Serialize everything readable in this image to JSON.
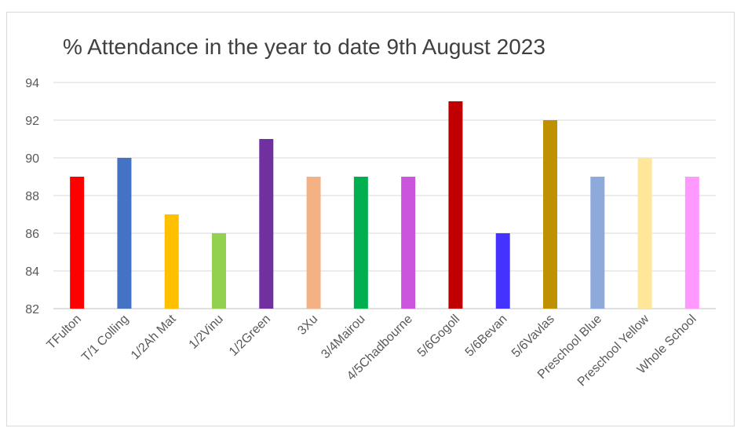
{
  "chart_data": {
    "type": "bar",
    "title": "% Attendance in the year to date 9th August 2023",
    "xlabel": "",
    "ylabel": "",
    "ylim": [
      82,
      94
    ],
    "yticks": [
      82,
      84,
      86,
      88,
      90,
      92,
      94
    ],
    "grid": true,
    "categories": [
      "TFulton",
      "T/1 Colling",
      "1/2Ah Mat",
      "1/2Vinu",
      "1/2Green",
      "3Xu",
      "3/4Mairou",
      "4/5Chadbourne",
      "5/6Gogoll",
      "5/6Bevan",
      "5/6Vavlas",
      "Preschool Blue",
      "Preschool Yellow",
      "Whole School"
    ],
    "values": [
      89,
      90,
      87,
      86,
      91,
      89,
      89,
      89,
      93,
      86,
      92,
      89,
      90,
      89
    ],
    "colors": [
      "#ff0000",
      "#4472c4",
      "#ffc000",
      "#92d050",
      "#7030a0",
      "#f4b183",
      "#00b050",
      "#cc55dd",
      "#c00000",
      "#4433ff",
      "#bf9000",
      "#8eaadb",
      "#ffe699",
      "#ff99ff"
    ]
  }
}
